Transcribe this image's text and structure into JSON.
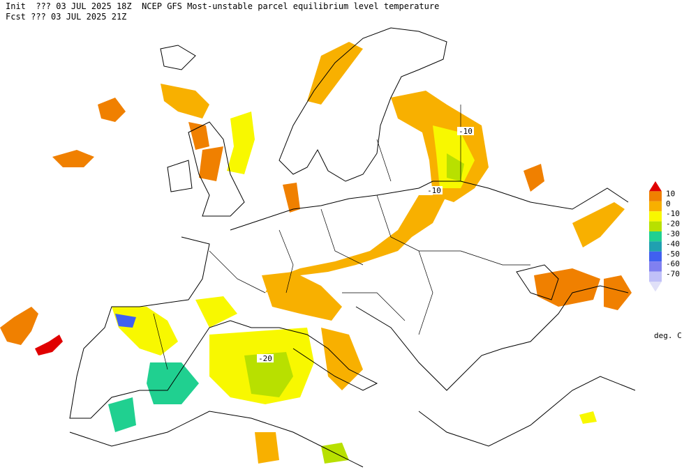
{
  "header": {
    "line1": "Init  ??? 03 JUL 2025 18Z  NCEP GFS Most-unstable parcel equilibrium level temperature",
    "line2": "Fcst ??? 03 JUL 2025 21Z"
  },
  "legend": {
    "levels": [
      "10",
      "0",
      "-10",
      "-20",
      "-30",
      "-40",
      "-50",
      "-60",
      "-70"
    ],
    "colors": [
      "#e00000",
      "#f08000",
      "#f8b000",
      "#f8f800",
      "#b8e000",
      "#20d090",
      "#20a0b0",
      "#4060f0",
      "#8080f0",
      "#c0c0f8",
      "#e0e0f8"
    ],
    "unit": "deg. C"
  },
  "contour_labels": [
    "-10",
    "-10",
    "-20"
  ]
}
